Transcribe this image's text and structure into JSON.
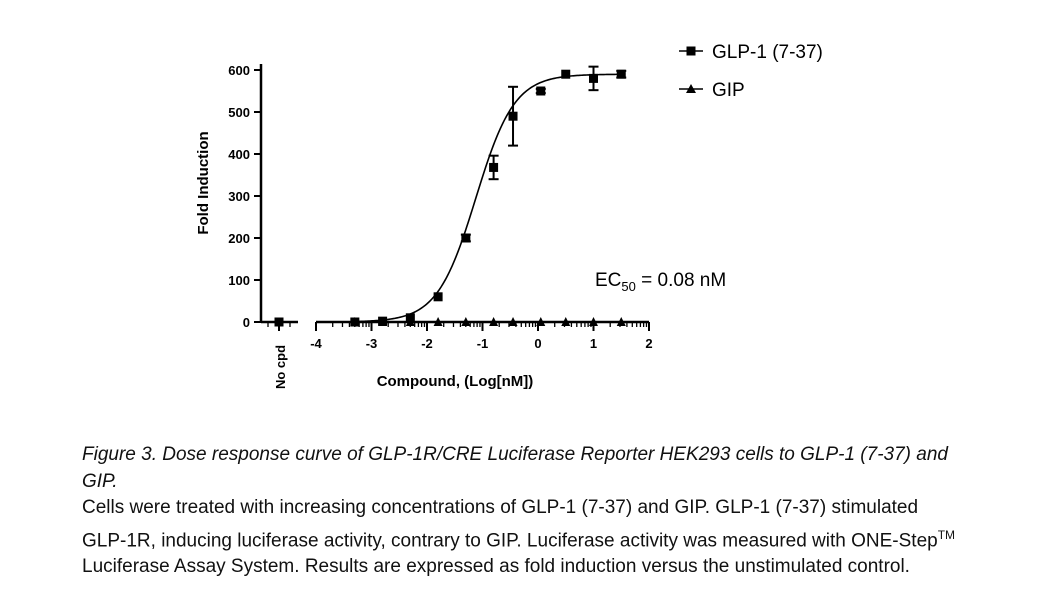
{
  "chart_data": {
    "type": "scatter",
    "title": "",
    "xlabel": "Compound, (Log[nM])",
    "ylabel": "Fold Induction",
    "xlim": [
      -4,
      2
    ],
    "ylim": [
      0,
      600
    ],
    "x_ticks": [
      "-4",
      "-3",
      "-2",
      "-1",
      "0",
      "1",
      "2"
    ],
    "y_ticks": [
      "0",
      "100",
      "200",
      "300",
      "400",
      "500",
      "600"
    ],
    "control_label": "No cpd",
    "legend_position": "top-right",
    "annotation": {
      "prefix": "EC",
      "subscript": "50",
      "suffix": " = 0.08 nM"
    },
    "series": [
      {
        "name": "GLP-1 (7-37)",
        "marker": "square",
        "control": 0,
        "x": [
          -3.3,
          -2.8,
          -2.3,
          -1.8,
          -1.3,
          -0.8,
          -0.45,
          0.05,
          0.5,
          1.0,
          1.5
        ],
        "y": [
          0,
          2,
          10,
          60,
          200,
          368,
          490,
          550,
          590,
          580,
          590
        ],
        "err": [
          0,
          0,
          0,
          0,
          8,
          28,
          70,
          5,
          0,
          28,
          8
        ]
      },
      {
        "name": "GIP",
        "marker": "triangle",
        "control": null,
        "x": [
          -3.3,
          -2.8,
          -2.3,
          -1.8,
          -1.3,
          -0.8,
          -0.45,
          0.05,
          0.5,
          1.0,
          1.5
        ],
        "y": [
          0,
          0,
          0,
          0,
          0,
          0,
          0,
          0,
          0,
          0,
          0
        ],
        "err": [
          0,
          0,
          0,
          0,
          0,
          0,
          0,
          0,
          0,
          0,
          0
        ]
      }
    ]
  },
  "caption": {
    "title": "Figure 3. Dose response curve of GLP-1R/CRE Luciferase Reporter HEK293 cells to GLP-1 (7-37) and GIP.",
    "body_before_tm": "Cells were treated with increasing concentrations of GLP-1 (7-37) and GIP. GLP-1 (7-37) stimulated GLP-1R, inducing luciferase activity, contrary to GIP. Luciferase activity was measured with ONE-Step",
    "tm": "TM",
    "body_after_tm": " Luciferase Assay System. Results are expressed as fold induction versus the unstimulated control."
  }
}
